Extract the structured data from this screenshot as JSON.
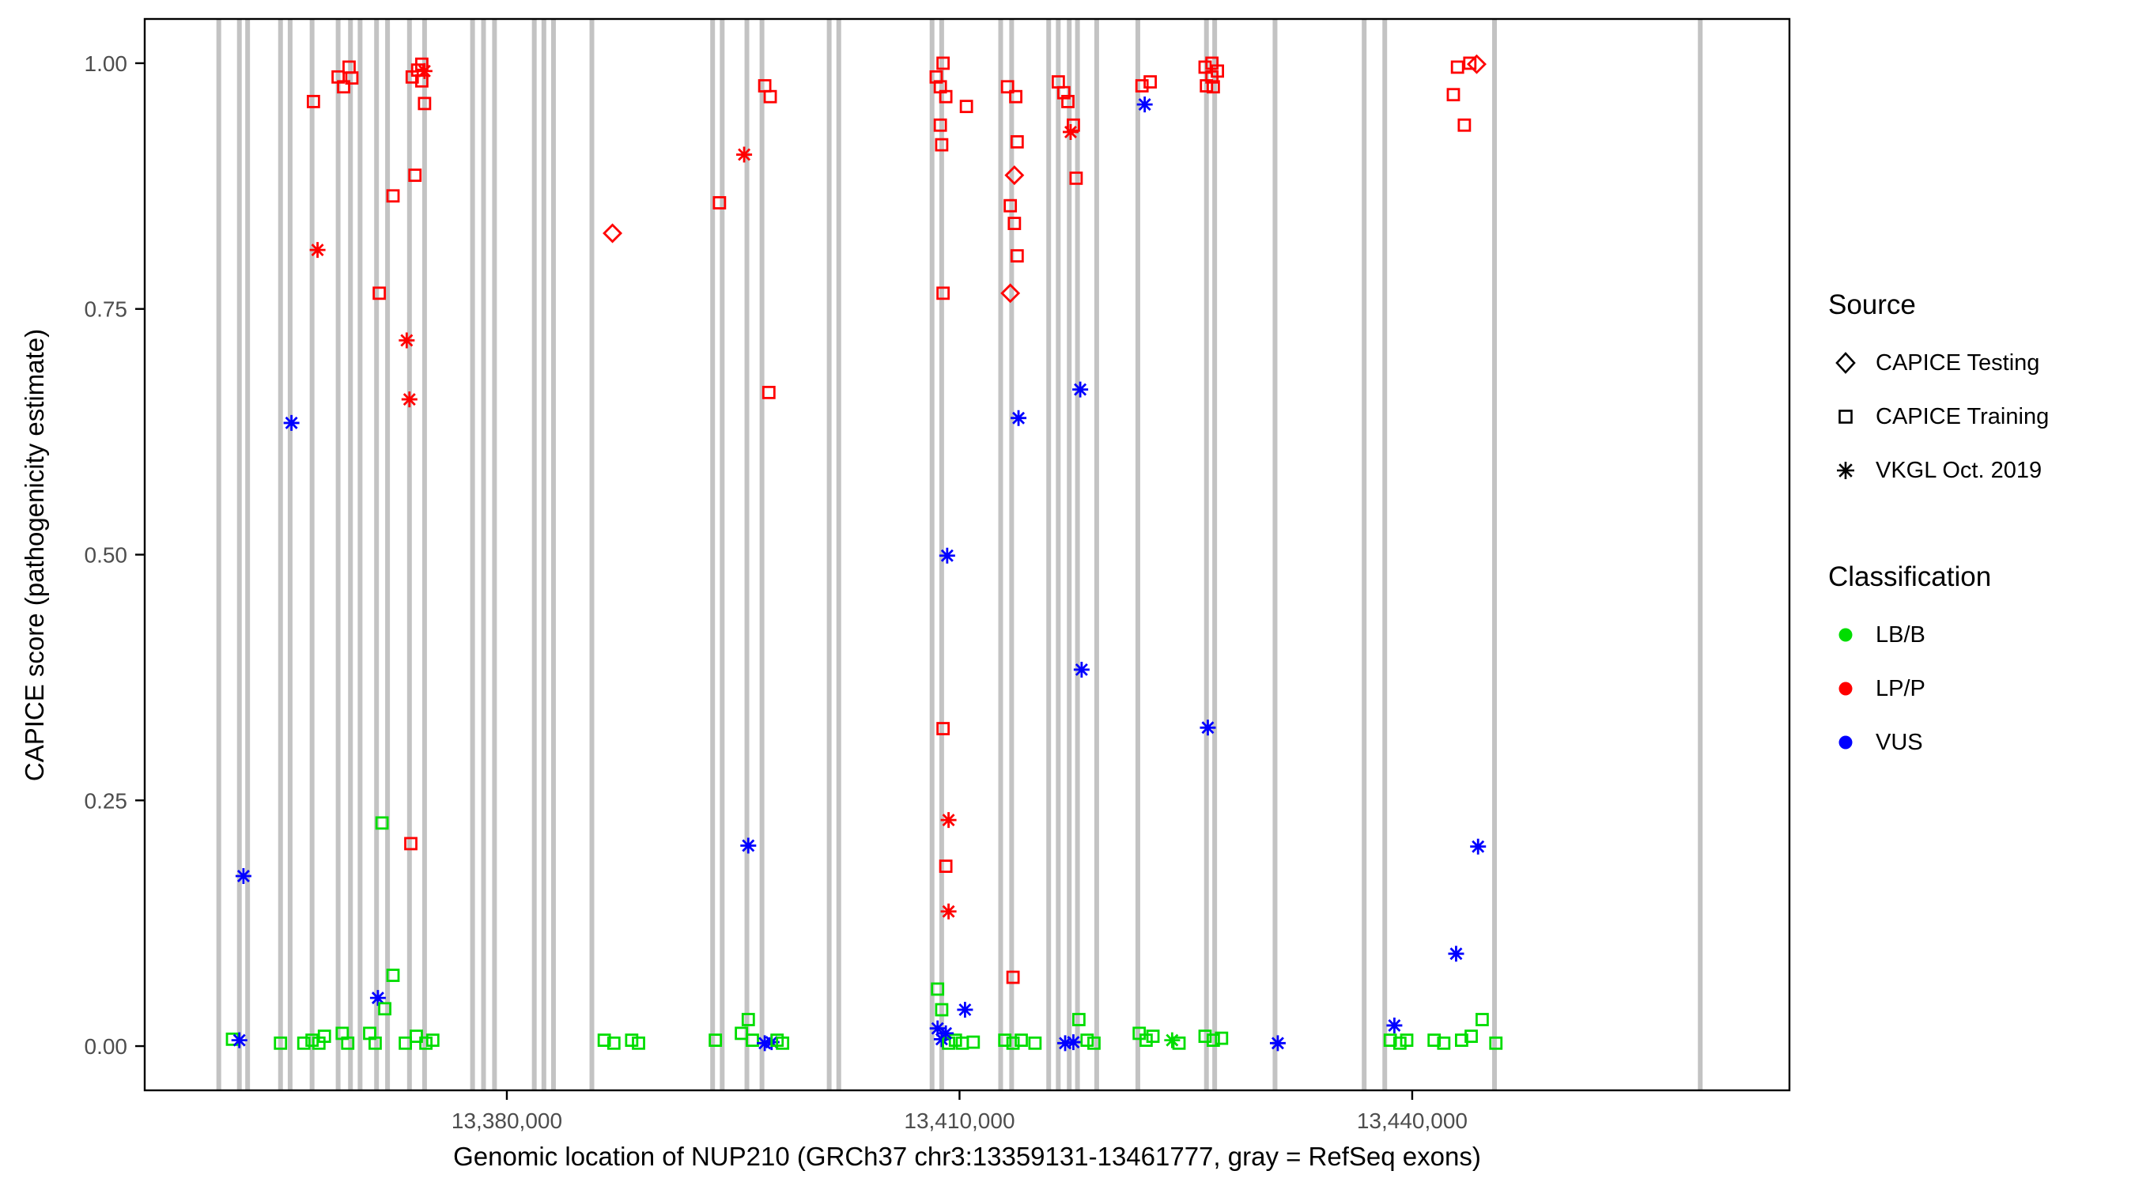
{
  "chart_data": {
    "type": "scatter",
    "axes": {
      "x_label": "Genomic location of NUP210 (GRCh37 chr3:13359131-13461777, gray = RefSeq exons)",
      "y_label": "CAPICE score (pathogenicity estimate)",
      "x_ticks": [
        {
          "value": 13380000,
          "label": "13,380,000"
        },
        {
          "value": 13410000,
          "label": "13,410,000"
        },
        {
          "value": 13440000,
          "label": "13,440,000"
        }
      ],
      "y_ticks": [
        {
          "value": 0.0,
          "label": "0.00"
        },
        {
          "value": 0.25,
          "label": "0.25"
        },
        {
          "value": 0.5,
          "label": "0.50"
        },
        {
          "value": 0.75,
          "label": "0.75"
        },
        {
          "value": 1.0,
          "label": "1.00"
        }
      ],
      "grid": "off",
      "legend_position": "right"
    },
    "legend": {
      "source": {
        "title": "Source",
        "items": [
          {
            "label": "CAPICE Testing",
            "shape": "diamond"
          },
          {
            "label": "CAPICE Training",
            "shape": "square"
          },
          {
            "label": "VKGL Oct. 2019",
            "shape": "asterisk"
          }
        ]
      },
      "classification": {
        "title": "Classification",
        "items": [
          {
            "label": "LB/B",
            "color": "#00DD00"
          },
          {
            "label": "LP/P",
            "color": "#FF0000"
          },
          {
            "label": "VUS",
            "color": "#0000FF"
          }
        ]
      }
    },
    "xlim": [
      13356000,
      13465000
    ],
    "ylim": [
      -0.045,
      1.045
    ],
    "colors": {
      "LB/B": "#00DD00",
      "LP/P": "#FF0000",
      "VUS": "#0000FF",
      "exon": "#C3C3C3"
    },
    "class_map": {
      "B": "LB/B",
      "P": "LP/P",
      "V": "VUS"
    },
    "shape_map": {
      "s": "square",
      "d": "diamond",
      "a": "asterisk"
    },
    "exons": [
      13360910,
      13362274,
      13362820,
      13365001,
      13365638,
      13367092,
      13368819,
      13369637,
      13370274,
      13371364,
      13372092,
      13373546,
      13374546,
      13377727,
      13378455,
      13379182,
      13381818,
      13382454,
      13383091,
      13385636,
      13393636,
      13394272,
      13395908,
      13396908,
      13401362,
      13401998,
      13408180,
      13408817,
      13412726,
      13413453,
      13415908,
      13416544,
      13417271,
      13417817,
      13419090,
      13421817,
      13426363,
      13426908,
      13430908,
      13436817,
      13438180,
      13445453,
      13459090
    ],
    "points": [
      [
        13361818,
        0.007,
        "s",
        "B"
      ],
      [
        13362273,
        0.006,
        "a",
        "V"
      ],
      [
        13362545,
        0.173,
        "a",
        "V"
      ],
      [
        13365000,
        0.003,
        "s",
        "B"
      ],
      [
        13365727,
        0.634,
        "a",
        "V"
      ],
      [
        13366545,
        0.003,
        "s",
        "B"
      ],
      [
        13367091,
        0.006,
        "s",
        "B"
      ],
      [
        13367545,
        0.003,
        "s",
        "B"
      ],
      [
        13367909,
        0.01,
        "s",
        "B"
      ],
      [
        13367182,
        0.961,
        "s",
        "P"
      ],
      [
        13367455,
        0.81,
        "a",
        "P"
      ],
      [
        13368818,
        0.986,
        "s",
        "P"
      ],
      [
        13369182,
        0.976,
        "s",
        "P"
      ],
      [
        13369545,
        0.996,
        "s",
        "P"
      ],
      [
        13369727,
        0.985,
        "s",
        "P"
      ],
      [
        13369091,
        0.013,
        "s",
        "B"
      ],
      [
        13369455,
        0.003,
        "s",
        "B"
      ],
      [
        13370909,
        0.013,
        "s",
        "B"
      ],
      [
        13371273,
        0.003,
        "s",
        "B"
      ],
      [
        13371545,
        0.766,
        "s",
        "P"
      ],
      [
        13371727,
        0.227,
        "s",
        "B"
      ],
      [
        13371455,
        0.049,
        "a",
        "V"
      ],
      [
        13371909,
        0.038,
        "s",
        "B"
      ],
      [
        13372455,
        0.072,
        "s",
        "B"
      ],
      [
        13372455,
        0.865,
        "s",
        "P"
      ],
      [
        13373364,
        0.718,
        "a",
        "P"
      ],
      [
        13373545,
        0.658,
        "a",
        "P"
      ],
      [
        13373636,
        0.206,
        "s",
        "P"
      ],
      [
        13373909,
        0.886,
        "s",
        "P"
      ],
      [
        13373727,
        0.986,
        "s",
        "P"
      ],
      [
        13374091,
        0.993,
        "s",
        "P"
      ],
      [
        13374364,
        0.999,
        "s",
        "P"
      ],
      [
        13374545,
        0.992,
        "a",
        "P"
      ],
      [
        13374364,
        0.982,
        "s",
        "P"
      ],
      [
        13374545,
        0.959,
        "s",
        "P"
      ],
      [
        13373273,
        0.003,
        "s",
        "B"
      ],
      [
        13374000,
        0.01,
        "s",
        "B"
      ],
      [
        13374636,
        0.003,
        "s",
        "B"
      ],
      [
        13375091,
        0.006,
        "s",
        "B"
      ],
      [
        13387000,
        0.827,
        "d",
        "P"
      ],
      [
        13386455,
        0.006,
        "s",
        "B"
      ],
      [
        13387091,
        0.003,
        "s",
        "B"
      ],
      [
        13388273,
        0.006,
        "s",
        "B"
      ],
      [
        13388727,
        0.003,
        "s",
        "B"
      ],
      [
        13394091,
        0.858,
        "s",
        "P"
      ],
      [
        13395727,
        0.907,
        "a",
        "P"
      ],
      [
        13397091,
        0.977,
        "s",
        "P"
      ],
      [
        13397455,
        0.966,
        "s",
        "P"
      ],
      [
        13397364,
        0.665,
        "s",
        "P"
      ],
      [
        13396000,
        0.204,
        "a",
        "V"
      ],
      [
        13393818,
        0.006,
        "s",
        "B"
      ],
      [
        13395545,
        0.013,
        "s",
        "B"
      ],
      [
        13396000,
        0.027,
        "s",
        "B"
      ],
      [
        13396273,
        0.006,
        "s",
        "B"
      ],
      [
        13397091,
        0.003,
        "a",
        "V"
      ],
      [
        13397545,
        0.004,
        "a",
        "V"
      ],
      [
        13397909,
        0.006,
        "s",
        "B"
      ],
      [
        13398273,
        0.003,
        "s",
        "B"
      ],
      [
        13408909,
        1.0,
        "s",
        "P"
      ],
      [
        13408455,
        0.986,
        "s",
        "P"
      ],
      [
        13408727,
        0.976,
        "s",
        "P"
      ],
      [
        13409091,
        0.966,
        "s",
        "P"
      ],
      [
        13408727,
        0.937,
        "s",
        "P"
      ],
      [
        13408818,
        0.917,
        "s",
        "P"
      ],
      [
        13410455,
        0.956,
        "s",
        "P"
      ],
      [
        13408909,
        0.766,
        "s",
        "P"
      ],
      [
        13409182,
        0.499,
        "a",
        "V"
      ],
      [
        13408909,
        0.323,
        "s",
        "P"
      ],
      [
        13409273,
        0.23,
        "a",
        "P"
      ],
      [
        13409091,
        0.183,
        "s",
        "P"
      ],
      [
        13409273,
        0.137,
        "a",
        "P"
      ],
      [
        13408545,
        0.058,
        "s",
        "B"
      ],
      [
        13408818,
        0.037,
        "s",
        "B"
      ],
      [
        13408545,
        0.018,
        "a",
        "V"
      ],
      [
        13408818,
        0.007,
        "a",
        "V"
      ],
      [
        13409273,
        0.003,
        "s",
        "B"
      ],
      [
        13409727,
        0.006,
        "s",
        "B"
      ],
      [
        13409091,
        0.013,
        "a",
        "V"
      ],
      [
        13410364,
        0.037,
        "a",
        "V"
      ],
      [
        13410182,
        0.003,
        "s",
        "B"
      ],
      [
        13410909,
        0.004,
        "s",
        "B"
      ],
      [
        13413636,
        0.886,
        "d",
        "P"
      ],
      [
        13413364,
        0.855,
        "s",
        "P"
      ],
      [
        13413636,
        0.837,
        "s",
        "P"
      ],
      [
        13413818,
        0.804,
        "s",
        "P"
      ],
      [
        13413364,
        0.766,
        "d",
        "P"
      ],
      [
        13413818,
        0.92,
        "s",
        "P"
      ],
      [
        13413182,
        0.976,
        "s",
        "P"
      ],
      [
        13413727,
        0.966,
        "s",
        "P"
      ],
      [
        13413909,
        0.639,
        "a",
        "V"
      ],
      [
        13413545,
        0.07,
        "s",
        "P"
      ],
      [
        13413000,
        0.006,
        "s",
        "B"
      ],
      [
        13413545,
        0.003,
        "s",
        "B"
      ],
      [
        13414091,
        0.006,
        "s",
        "B"
      ],
      [
        13415000,
        0.003,
        "s",
        "B"
      ],
      [
        13416545,
        0.981,
        "s",
        "P"
      ],
      [
        13416909,
        0.97,
        "s",
        "P"
      ],
      [
        13417182,
        0.961,
        "s",
        "P"
      ],
      [
        13417545,
        0.937,
        "s",
        "P"
      ],
      [
        13417364,
        0.93,
        "a",
        "P"
      ],
      [
        13417727,
        0.883,
        "s",
        "P"
      ],
      [
        13418000,
        0.668,
        "a",
        "V"
      ],
      [
        13418091,
        0.383,
        "a",
        "V"
      ],
      [
        13417909,
        0.027,
        "s",
        "B"
      ],
      [
        13417000,
        0.003,
        "a",
        "V"
      ],
      [
        13417545,
        0.004,
        "a",
        "V"
      ],
      [
        13418455,
        0.006,
        "s",
        "B"
      ],
      [
        13418909,
        0.003,
        "s",
        "B"
      ],
      [
        13422273,
        0.958,
        "a",
        "V"
      ],
      [
        13422091,
        0.977,
        "s",
        "P"
      ],
      [
        13422636,
        0.981,
        "s",
        "P"
      ],
      [
        13421909,
        0.013,
        "s",
        "B"
      ],
      [
        13422364,
        0.006,
        "s",
        "B"
      ],
      [
        13422818,
        0.01,
        "s",
        "B"
      ],
      [
        13424091,
        0.006,
        "a",
        "B"
      ],
      [
        13424545,
        0.003,
        "s",
        "B"
      ],
      [
        13426273,
        0.996,
        "s",
        "P"
      ],
      [
        13426727,
        1.0,
        "s",
        "P"
      ],
      [
        13427091,
        0.992,
        "s",
        "P"
      ],
      [
        13426727,
        0.986,
        "s",
        "P"
      ],
      [
        13426364,
        0.977,
        "s",
        "P"
      ],
      [
        13426818,
        0.976,
        "s",
        "P"
      ],
      [
        13426455,
        0.324,
        "a",
        "V"
      ],
      [
        13426273,
        0.01,
        "s",
        "B"
      ],
      [
        13426818,
        0.006,
        "s",
        "B"
      ],
      [
        13427364,
        0.008,
        "s",
        "B"
      ],
      [
        13431091,
        0.003,
        "a",
        "V"
      ],
      [
        13438818,
        0.021,
        "a",
        "V"
      ],
      [
        13438545,
        0.006,
        "s",
        "B"
      ],
      [
        13439182,
        0.003,
        "s",
        "B"
      ],
      [
        13439636,
        0.006,
        "s",
        "B"
      ],
      [
        13442727,
        0.968,
        "s",
        "P"
      ],
      [
        13443000,
        0.996,
        "s",
        "P"
      ],
      [
        13443818,
        1.0,
        "s",
        "P"
      ],
      [
        13444273,
        0.999,
        "d",
        "P"
      ],
      [
        13443455,
        0.937,
        "s",
        "P"
      ],
      [
        13444364,
        0.203,
        "a",
        "V"
      ],
      [
        13442909,
        0.094,
        "a",
        "V"
      ],
      [
        13441455,
        0.006,
        "s",
        "B"
      ],
      [
        13442091,
        0.003,
        "s",
        "B"
      ],
      [
        13443273,
        0.006,
        "s",
        "B"
      ],
      [
        13443909,
        0.01,
        "s",
        "B"
      ],
      [
        13444636,
        0.027,
        "s",
        "B"
      ],
      [
        13445545,
        0.003,
        "s",
        "B"
      ]
    ]
  }
}
